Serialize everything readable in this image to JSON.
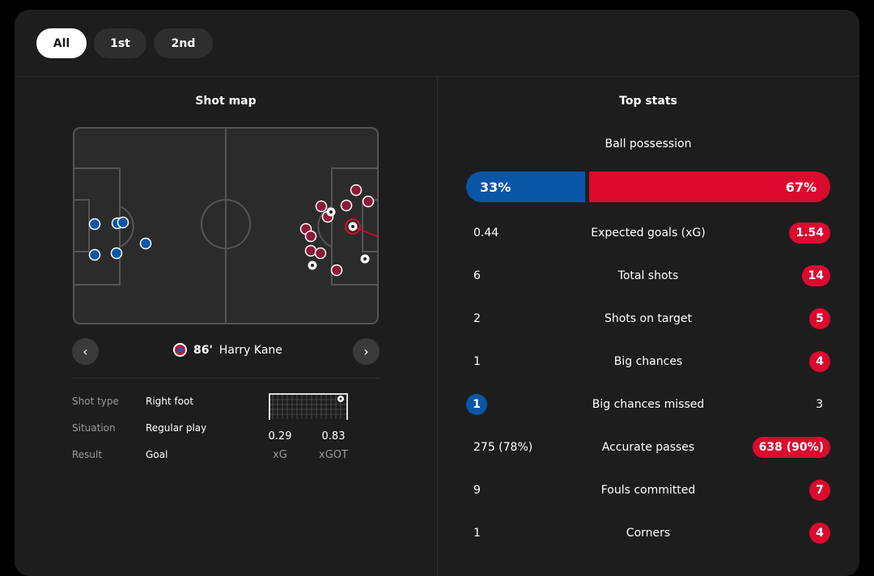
{
  "tabs": [
    {
      "label": "All",
      "active": true
    },
    {
      "label": "1st",
      "active": false
    },
    {
      "label": "2nd",
      "active": false
    }
  ],
  "shot_map": {
    "title": "Shot map",
    "selected": {
      "minute": "86'",
      "player": "Harry Kane",
      "details": [
        {
          "label": "Shot type",
          "value": "Right foot"
        },
        {
          "label": "Situation",
          "value": "Regular play"
        },
        {
          "label": "Result",
          "value": "Goal"
        }
      ],
      "xg": "0.29",
      "xg_label": "xG",
      "xgot": "0.83",
      "xgot_label": "xGOT"
    },
    "colors": {
      "home": "#0a56a6",
      "away": "#8b1a3a",
      "line": "#dc0a2e"
    }
  },
  "top_stats": {
    "title": "Top stats",
    "possession_label": "Ball possession",
    "possession_home": "33%",
    "possession_away": "67%",
    "possession_home_fraction": 0.33,
    "rows": [
      {
        "label": "Expected goals (xG)",
        "home": "0.44",
        "away": "1.54",
        "highlight": "away"
      },
      {
        "label": "Total shots",
        "home": "6",
        "away": "14",
        "highlight": "away"
      },
      {
        "label": "Shots on target",
        "home": "2",
        "away": "5",
        "highlight": "away"
      },
      {
        "label": "Big chances",
        "home": "1",
        "away": "4",
        "highlight": "away"
      },
      {
        "label": "Big chances missed",
        "home": "1",
        "away": "3",
        "highlight": "home"
      },
      {
        "label": "Accurate passes",
        "home": "275 (78%)",
        "away": "638 (90%)",
        "highlight": "away"
      },
      {
        "label": "Fouls committed",
        "home": "9",
        "away": "7",
        "highlight": "away"
      },
      {
        "label": "Corners",
        "home": "1",
        "away": "4",
        "highlight": "away"
      }
    ],
    "colors": {
      "home": "#0a56a6",
      "away": "#dc0a2e"
    }
  }
}
